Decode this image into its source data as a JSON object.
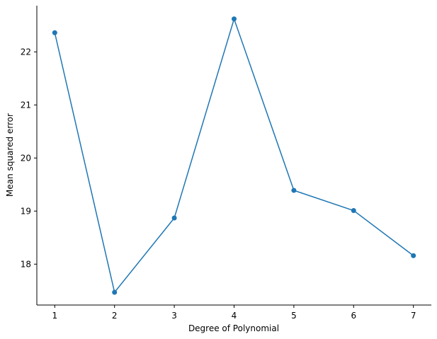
{
  "chart_data": {
    "type": "line",
    "title": "",
    "xlabel": "Degree of Polynomial",
    "ylabel": "Mean squared error",
    "x": [
      1,
      2,
      3,
      4,
      5,
      6,
      7
    ],
    "series": [
      {
        "values": [
          22.36,
          17.47,
          18.87,
          22.62,
          19.39,
          19.01,
          18.16
        ]
      }
    ],
    "xticks": [
      1,
      2,
      3,
      4,
      5,
      6,
      7
    ],
    "yticks": [
      18,
      19,
      20,
      21,
      22
    ],
    "xlim": [
      0.7,
      7.3
    ],
    "ylim": [
      17.23,
      22.87
    ],
    "grid": false,
    "legend": "none",
    "marker": "circle",
    "color": "#1f77b4",
    "spines": "left-bottom"
  }
}
